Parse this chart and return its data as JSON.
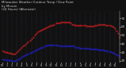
{
  "title": "Milwaukee Weather Outdoor Temp / Dew Point\nby Minute\n(24 Hours) (Alternate)",
  "bg_color": "#111111",
  "text_color": "#cccccc",
  "grid_color": "#444466",
  "red_color": "#ff2222",
  "blue_color": "#2222ff",
  "ylim": [
    18,
    78
  ],
  "yticks": [
    20,
    30,
    40,
    50,
    60,
    70
  ],
  "xlim": [
    0,
    1440
  ],
  "xtick_labels": [
    "M",
    "1",
    "2",
    "3",
    "4",
    "5",
    "6",
    "7",
    "8",
    "9",
    "10",
    "11",
    "N",
    "1",
    "2",
    "3",
    "4",
    "5",
    "6",
    "7",
    "8",
    "9",
    "10",
    "11"
  ],
  "xtick_positions": [
    0,
    60,
    120,
    180,
    240,
    300,
    360,
    420,
    480,
    540,
    600,
    660,
    720,
    780,
    840,
    900,
    960,
    1020,
    1080,
    1140,
    1200,
    1260,
    1320,
    1380
  ],
  "vgrid_positions": [
    0,
    60,
    120,
    180,
    240,
    300,
    360,
    420,
    480,
    540,
    600,
    660,
    720,
    780,
    840,
    900,
    960,
    1020,
    1080,
    1140,
    1200,
    1260,
    1320,
    1380,
    1440
  ],
  "temp_x": [
    0,
    20,
    40,
    60,
    80,
    100,
    120,
    140,
    160,
    180,
    200,
    220,
    240,
    260,
    280,
    300,
    320,
    340,
    360,
    380,
    400,
    420,
    440,
    460,
    480,
    500,
    520,
    540,
    560,
    580,
    600,
    620,
    640,
    660,
    680,
    700,
    720,
    740,
    760,
    780,
    800,
    820,
    840,
    860,
    880,
    900,
    920,
    940,
    960,
    980,
    1000,
    1020,
    1040,
    1060,
    1080,
    1100,
    1120,
    1140,
    1160,
    1180,
    1200,
    1220,
    1240,
    1260,
    1280,
    1300,
    1320,
    1340,
    1360,
    1380,
    1400,
    1420,
    1440
  ],
  "temp_y": [
    32,
    31,
    30,
    30,
    29,
    29,
    28,
    28,
    28,
    30,
    32,
    34,
    36,
    37,
    38,
    40,
    42,
    44,
    46,
    48,
    50,
    52,
    54,
    55,
    56,
    57,
    58,
    59,
    60,
    61,
    62,
    62,
    63,
    64,
    64,
    64,
    65,
    65,
    65,
    65,
    65,
    65,
    64,
    63,
    63,
    62,
    62,
    62,
    62,
    62,
    62,
    62,
    61,
    61,
    61,
    61,
    61,
    62,
    62,
    63,
    63,
    63,
    63,
    63,
    62,
    62,
    62,
    61,
    60,
    58,
    55,
    52,
    48
  ],
  "dew_x": [
    0,
    20,
    40,
    60,
    80,
    100,
    120,
    140,
    160,
    180,
    200,
    220,
    240,
    260,
    280,
    300,
    320,
    340,
    360,
    380,
    400,
    420,
    440,
    460,
    480,
    500,
    520,
    540,
    560,
    580,
    600,
    620,
    640,
    660,
    680,
    700,
    720,
    740,
    760,
    780,
    800,
    820,
    840,
    860,
    880,
    900,
    920,
    940,
    960,
    980,
    1000,
    1020,
    1040,
    1060,
    1080,
    1100,
    1120,
    1140,
    1160,
    1180,
    1200,
    1220,
    1240,
    1260,
    1280,
    1300,
    1320,
    1340,
    1360,
    1380,
    1400,
    1420,
    1440
  ],
  "dew_y": [
    22,
    22,
    21,
    21,
    21,
    21,
    20,
    20,
    20,
    21,
    22,
    23,
    24,
    25,
    26,
    27,
    28,
    29,
    30,
    31,
    32,
    33,
    34,
    35,
    36,
    36,
    37,
    37,
    38,
    38,
    38,
    38,
    38,
    38,
    38,
    37,
    37,
    37,
    37,
    37,
    37,
    37,
    37,
    37,
    37,
    36,
    36,
    36,
    35,
    35,
    35,
    35,
    35,
    35,
    34,
    34,
    34,
    34,
    34,
    33,
    33,
    33,
    33,
    32,
    32,
    31,
    31,
    30,
    29,
    28,
    27,
    26,
    24
  ]
}
